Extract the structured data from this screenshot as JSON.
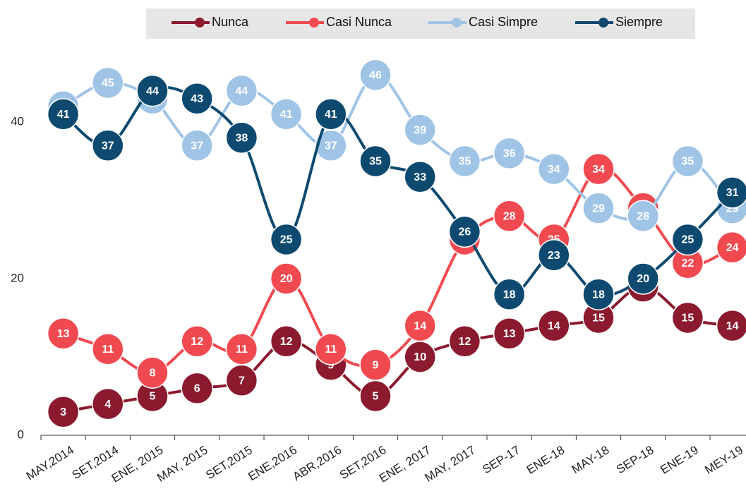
{
  "chart_data": {
    "type": "line",
    "categories": [
      "MAY,2014",
      "SET,2014",
      "ENE, 2015",
      "MAY, 2015",
      "SET,2015",
      "ENE,2016",
      "ABR,2016",
      "SET,2016",
      "ENE, 2017",
      "MAY, 2017",
      "SEP-17",
      "ENE-18",
      "MAY-18",
      "SEP-18",
      "ENE-19",
      "MEY-19"
    ],
    "series": [
      {
        "name": "Nunca",
        "color": "#8b1a2e",
        "values": [
          3,
          4,
          5,
          6,
          7,
          12,
          9,
          5,
          10,
          12,
          13,
          14,
          15,
          19,
          15,
          14
        ]
      },
      {
        "name": "Casi Nunca",
        "color": "#f04a50",
        "values": [
          13,
          11,
          8,
          12,
          11,
          20,
          11,
          9,
          14,
          25,
          28,
          25,
          34,
          29,
          22,
          24
        ]
      },
      {
        "name": "Casi Simpre",
        "color": "#9fc4e6",
        "values": [
          42,
          45,
          43,
          37,
          44,
          41,
          37,
          46,
          39,
          35,
          36,
          34,
          29,
          28,
          35,
          29
        ]
      },
      {
        "name": "Siempre",
        "color": "#0e4a70",
        "values": [
          41,
          37,
          44,
          43,
          38,
          25,
          41,
          35,
          33,
          26,
          18,
          23,
          18,
          20,
          25,
          31
        ]
      }
    ],
    "ylim": [
      0,
      50
    ],
    "yticks": [
      0,
      20,
      40
    ],
    "legend": "top"
  }
}
